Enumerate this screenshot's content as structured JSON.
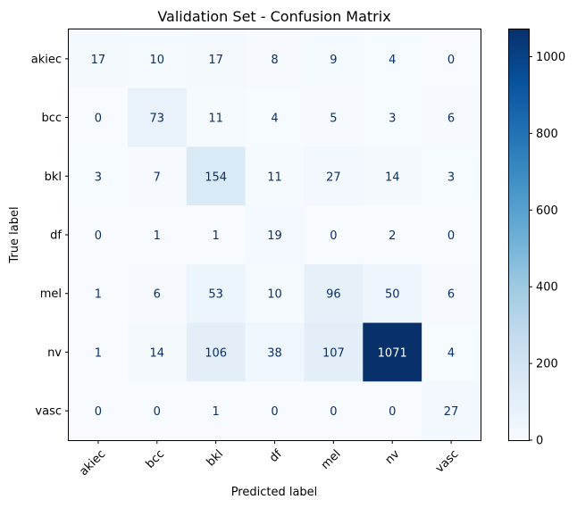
{
  "chart_data": {
    "type": "heatmap",
    "title": "Validation Set - Confusion Matrix",
    "xlabel": "Predicted label",
    "ylabel": "True label",
    "x_categories": [
      "akiec",
      "bcc",
      "bkl",
      "df",
      "mel",
      "nv",
      "vasc"
    ],
    "y_categories": [
      "akiec",
      "bcc",
      "bkl",
      "df",
      "mel",
      "nv",
      "vasc"
    ],
    "values": [
      [
        17,
        10,
        17,
        8,
        9,
        4,
        0
      ],
      [
        0,
        73,
        11,
        4,
        5,
        3,
        6
      ],
      [
        3,
        7,
        154,
        11,
        27,
        14,
        3
      ],
      [
        0,
        1,
        1,
        19,
        0,
        2,
        0
      ],
      [
        1,
        6,
        53,
        10,
        96,
        50,
        6
      ],
      [
        1,
        14,
        106,
        38,
        107,
        1071,
        4
      ],
      [
        0,
        0,
        1,
        0,
        0,
        0,
        27
      ]
    ],
    "colormap": "Blues",
    "colorbar": {
      "range": [
        0,
        1071
      ],
      "ticks": [
        0,
        200,
        400,
        600,
        800,
        1000
      ]
    }
  }
}
